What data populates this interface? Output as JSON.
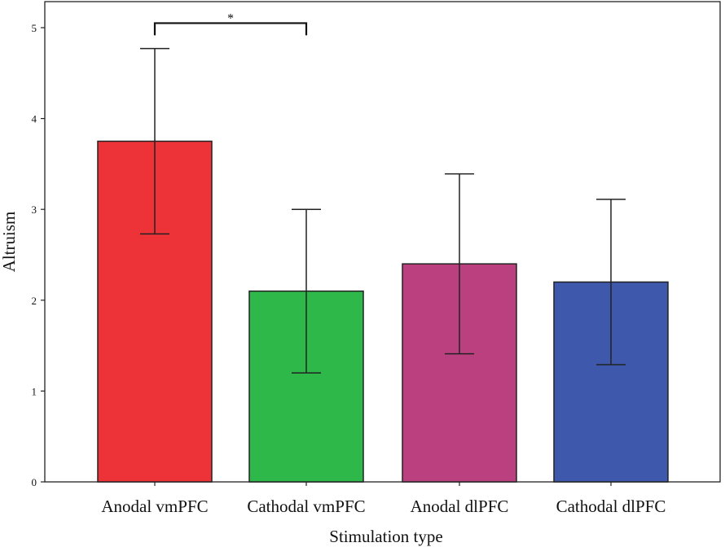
{
  "chart_data": {
    "type": "bar",
    "title": "",
    "xlabel": "Stimulation type",
    "ylabel": "Altruism",
    "ylim": [
      0,
      5.3
    ],
    "yticks": [
      0,
      1,
      2,
      3,
      4,
      5
    ],
    "ytick_labels": [
      "0",
      "1",
      "2",
      "3",
      "4",
      "5"
    ],
    "categories": [
      "Anodal vmPFC",
      "Cathodal vmPFC",
      "Anodal dlPFC",
      "Cathodal dlPFC"
    ],
    "values": [
      3.75,
      2.1,
      2.4,
      2.2
    ],
    "error_low": [
      2.73,
      1.2,
      1.41,
      1.29
    ],
    "error_high": [
      4.77,
      3.0,
      3.39,
      3.11
    ],
    "colors": [
      "#ee3338",
      "#2fb84a",
      "#bb4080",
      "#3e58ac"
    ],
    "grid": false,
    "annotations": [
      {
        "type": "significance_bracket",
        "from_category": 0,
        "to_category": 1,
        "level": 5.05,
        "label": "*"
      }
    ]
  }
}
